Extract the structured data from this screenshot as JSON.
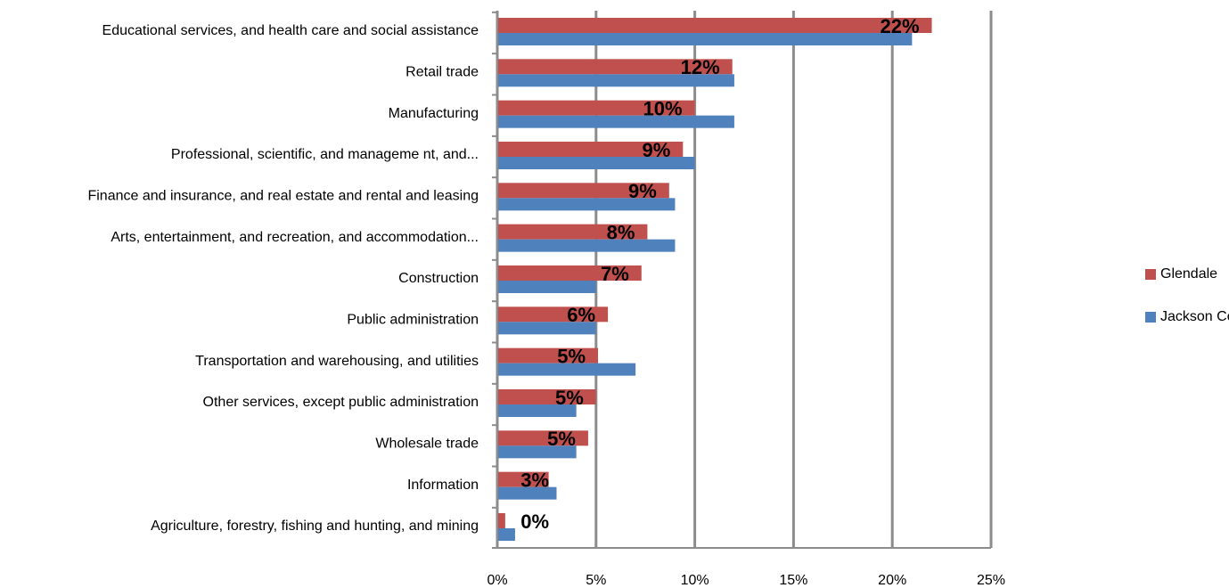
{
  "chart_data": {
    "type": "hbar",
    "categories": [
      "Educational services, and health care and social assistance",
      "Retail trade",
      "Manufacturing",
      "Professional, scientific, and manageme nt, and...",
      "Finance and insurance, and real estate and rental and leasing",
      "Arts, entertainment, and recreation, and accommodation...",
      "Construction",
      "Public administration",
      "Transportation and warehousing, and utilities",
      "Other services, except public administration",
      "Wholesale trade",
      "Information",
      "Agriculture, forestry, fishing and hunting, and mining"
    ],
    "series": [
      {
        "name": "Glendale",
        "color": "#c0504d",
        "values": [
          22,
          11.9,
          10,
          9.4,
          8.7,
          7.6,
          7.3,
          5.6,
          5.1,
          5,
          4.6,
          2.6,
          0.4
        ],
        "value_labels": [
          "22%",
          "12%",
          "10%",
          "9%",
          "9%",
          "8%",
          "7%",
          "6%",
          "5%",
          "5%",
          "5%",
          "3%",
          "0%"
        ]
      },
      {
        "name": "Jackson County",
        "color": "#4f81bd",
        "values": [
          21,
          12,
          12,
          10,
          9,
          9,
          5,
          5,
          7,
          4,
          4,
          3,
          0.9
        ]
      }
    ],
    "xlim": [
      0,
      25
    ],
    "xticks": [
      {
        "value": 0,
        "label": "0%"
      },
      {
        "value": 5,
        "label": "5%"
      },
      {
        "value": 10,
        "label": "10%"
      },
      {
        "value": 15,
        "label": "15%"
      },
      {
        "value": 20,
        "label": "20%"
      },
      {
        "value": 25,
        "label": "25%"
      }
    ],
    "grid": true,
    "legend": "right"
  }
}
